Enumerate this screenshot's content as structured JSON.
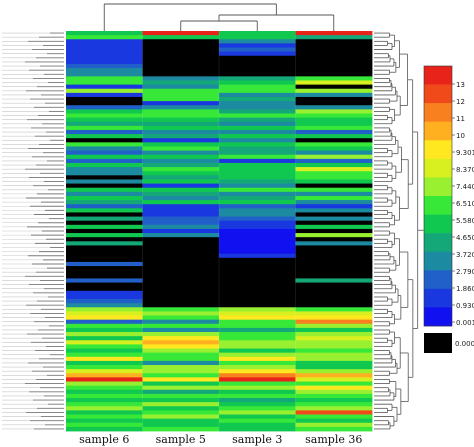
{
  "chart_data": {
    "type": "heatmap",
    "columns": [
      "sample 6",
      "sample 5",
      "sample 3",
      "sample 36"
    ],
    "n_rows": 97,
    "row_labels_legible": false,
    "color_scale": {
      "ticks": [
        "13",
        "12",
        "11",
        "10",
        "9.301",
        "8.370",
        "7.440",
        "6.510",
        "5.580",
        "4.650",
        "3.720",
        "2.790",
        "1.860",
        "0.9301",
        "0.001",
        "0.000"
      ],
      "colors": [
        "#e8231a",
        "#f04a1a",
        "#f8801e",
        "#ffb020",
        "#ffe820",
        "#d8f020",
        "#98f030",
        "#38e838",
        "#10c850",
        "#14a878",
        "#1c8aa0",
        "#2060c8",
        "#1a38e0",
        "#1010f0",
        "#000000"
      ],
      "no_data_color": "#000000",
      "zero_label": "0.000"
    },
    "row_colors": [
      [
        "#10c850",
        "#e8231a",
        "#10c850",
        "#e8231a"
      ],
      [
        "#38e838",
        "#10c850",
        "#10c850",
        "#14a878"
      ],
      [
        "#1a38e0",
        "#000000",
        "#1c8aa0",
        "#000000"
      ],
      [
        "#1a38e0",
        "#000000",
        "#1a38e0",
        "#000000"
      ],
      [
        "#1a38e0",
        "#000000",
        "#2060c8",
        "#000000"
      ],
      [
        "#1a38e0",
        "#000000",
        "#1a38e0",
        "#000000"
      ],
      [
        "#1a38e0",
        "#000000",
        "#000000",
        "#000000"
      ],
      [
        "#1a38e0",
        "#000000",
        "#000000",
        "#000000"
      ],
      [
        "#2060c8",
        "#000000",
        "#000000",
        "#000000"
      ],
      [
        "#1c8aa0",
        "#000000",
        "#000000",
        "#000000"
      ],
      [
        "#1c8aa0",
        "#000000",
        "#000000",
        "#000000"
      ],
      [
        "#38e838",
        "#1c8aa0",
        "#14a878",
        "#38e838"
      ],
      [
        "#38e838",
        "#14a878",
        "#10c850",
        "#d8f020"
      ],
      [
        "#1a38e0",
        "#1c8aa0",
        "#38e838",
        "#000000"
      ],
      [
        "#98f030",
        "#38e838",
        "#38e838",
        "#98f030"
      ],
      [
        "#1a38e0",
        "#38e838",
        "#1c8aa0",
        "#1c8aa0"
      ],
      [
        "#000000",
        "#38e838",
        "#14a878",
        "#000000"
      ],
      [
        "#000000",
        "#1a38e0",
        "#1c8aa0",
        "#000000"
      ],
      [
        "#2060c8",
        "#1c8aa0",
        "#1c8aa0",
        "#1c8aa0"
      ],
      [
        "#10c850",
        "#38e838",
        "#14a878",
        "#98f030"
      ],
      [
        "#38e838",
        "#38e838",
        "#38e838",
        "#38e838"
      ],
      [
        "#10c850",
        "#10c850",
        "#14a878",
        "#10c850"
      ],
      [
        "#14a878",
        "#14a878",
        "#1c8aa0",
        "#10c850"
      ],
      [
        "#38e838",
        "#10c850",
        "#10c850",
        "#38e838"
      ],
      [
        "#2060c8",
        "#1c8aa0",
        "#1c8aa0",
        "#2060c8"
      ],
      [
        "#10c850",
        "#14a878",
        "#10c850",
        "#10c850"
      ],
      [
        "#000000",
        "#1a38e0",
        "#1c8aa0",
        "#000000"
      ],
      [
        "#38e838",
        "#10c850",
        "#10c850",
        "#38e838"
      ],
      [
        "#1c8aa0",
        "#38e838",
        "#14a878",
        "#10c850"
      ],
      [
        "#2060c8",
        "#1c8aa0",
        "#14a878",
        "#1c8aa0"
      ],
      [
        "#10c850",
        "#10c850",
        "#38e838",
        "#98f030"
      ],
      [
        "#2060c8",
        "#1c8aa0",
        "#1a38e0",
        "#2060c8"
      ],
      [
        "#10c850",
        "#14a878",
        "#10c850",
        "#10c850"
      ],
      [
        "#1c8aa0",
        "#38e838",
        "#10c850",
        "#d8f020"
      ],
      [
        "#1c8aa0",
        "#10c850",
        "#10c850",
        "#38e838"
      ],
      [
        "#000000",
        "#14a878",
        "#10c850",
        "#38e838"
      ],
      [
        "#1c8aa0",
        "#10c850",
        "#14a878",
        "#10c850"
      ],
      [
        "#000000",
        "#1a38e0",
        "#1c8aa0",
        "#000000"
      ],
      [
        "#10c850",
        "#10c850",
        "#38e838",
        "#38e838"
      ],
      [
        "#1c8aa0",
        "#14a878",
        "#1c8aa0",
        "#1c8aa0"
      ],
      [
        "#10c850",
        "#1c8aa0",
        "#14a878",
        "#38e838"
      ],
      [
        "#14a878",
        "#10c850",
        "#10c850",
        "#1c8aa0"
      ],
      [
        "#2060c8",
        "#1a38e0",
        "#2060c8",
        "#1a38e0"
      ],
      [
        "#10c850",
        "#1a38e0",
        "#1c8aa0",
        "#1c8aa0"
      ],
      [
        "#000000",
        "#1a38e0",
        "#1c8aa0",
        "#000000"
      ],
      [
        "#14a878",
        "#2060c8",
        "#2060c8",
        "#1c8aa0"
      ],
      [
        "#000000",
        "#2060c8",
        "#1a38e0",
        "#000000"
      ],
      [
        "#10c850",
        "#1c8aa0",
        "#1a38e0",
        "#10c850"
      ],
      [
        "#000000",
        "#1a38e0",
        "#1010f0",
        "#000000"
      ],
      [
        "#10c850",
        "#1c8aa0",
        "#1010f0",
        "#98f030"
      ],
      [
        "#000000",
        "#000000",
        "#1010f0",
        "#000000"
      ],
      [
        "#14a878",
        "#000000",
        "#1010f0",
        "#1c8aa0"
      ],
      [
        "#000000",
        "#000000",
        "#1010f0",
        "#000000"
      ],
      [
        "#000000",
        "#000000",
        "#1010f0",
        "#000000"
      ],
      [
        "#000000",
        "#000000",
        "#1a38e0",
        "#000000"
      ],
      [
        "#000000",
        "#000000",
        "#000000",
        "#000000"
      ],
      [
        "#2060c8",
        "#000000",
        "#000000",
        "#000000"
      ],
      [
        "#000000",
        "#000000",
        "#000000",
        "#000000"
      ],
      [
        "#000000",
        "#000000",
        "#000000",
        "#000000"
      ],
      [
        "#000000",
        "#000000",
        "#000000",
        "#000000"
      ],
      [
        "#2060c8",
        "#000000",
        "#000000",
        "#14a878"
      ],
      [
        "#000000",
        "#000000",
        "#000000",
        "#000000"
      ],
      [
        "#000000",
        "#000000",
        "#000000",
        "#000000"
      ],
      [
        "#1a38e0",
        "#000000",
        "#000000",
        "#000000"
      ],
      [
        "#1a38e0",
        "#000000",
        "#000000",
        "#000000"
      ],
      [
        "#2060c8",
        "#000000",
        "#000000",
        "#000000"
      ],
      [
        "#1c8aa0",
        "#000000",
        "#000000",
        "#000000"
      ],
      [
        "#98f030",
        "#38e838",
        "#98f030",
        "#38e838"
      ],
      [
        "#d8f020",
        "#98f030",
        "#d8f020",
        "#d8f020"
      ],
      [
        "#ffe820",
        "#38e838",
        "#ffe820",
        "#ffe820"
      ],
      [
        "#2060c8",
        "#1c8aa0",
        "#38e838",
        "#f8801e"
      ],
      [
        "#38e838",
        "#38e838",
        "#38e838",
        "#98f030"
      ],
      [
        "#10c850",
        "#1c8aa0",
        "#14a878",
        "#10c850"
      ],
      [
        "#98f030",
        "#98f030",
        "#38e838",
        "#98f030"
      ],
      [
        "#10c850",
        "#ffe820",
        "#38e838",
        "#d8f020"
      ],
      [
        "#d8f020",
        "#ffb020",
        "#98f030",
        "#98f030"
      ],
      [
        "#38e838",
        "#ffe820",
        "#98f030",
        "#98f030"
      ],
      [
        "#10c850",
        "#98f030",
        "#10c850",
        "#38e838"
      ],
      [
        "#38e838",
        "#38e838",
        "#98f030",
        "#98f030"
      ],
      [
        "#ffe820",
        "#38e838",
        "#ffe820",
        "#98f030"
      ],
      [
        "#10c850",
        "#1c8aa0",
        "#38e838",
        "#10c850"
      ],
      [
        "#38e838",
        "#98f030",
        "#98f030",
        "#10c850"
      ],
      [
        "#d8f020",
        "#98f030",
        "#ffe820",
        "#98f030"
      ],
      [
        "#ffb020",
        "#38e838",
        "#f8801e",
        "#ffb020"
      ],
      [
        "#e8231a",
        "#ffe820",
        "#e8231a",
        "#d8f020"
      ],
      [
        "#98f030",
        "#10c850",
        "#38e838",
        "#38e838"
      ],
      [
        "#38e838",
        "#98f030",
        "#98f030",
        "#ffe820"
      ],
      [
        "#10c850",
        "#14a878",
        "#10c850",
        "#98f030"
      ],
      [
        "#38e838",
        "#38e838",
        "#38e838",
        "#38e838"
      ],
      [
        "#10c850",
        "#10c850",
        "#14a878",
        "#10c850"
      ],
      [
        "#38e838",
        "#98f030",
        "#10c850",
        "#38e838"
      ],
      [
        "#98f030",
        "#10c850",
        "#38e838",
        "#98f030"
      ],
      [
        "#10c850",
        "#38e838",
        "#98f030",
        "#f04a1a"
      ],
      [
        "#38e838",
        "#98f030",
        "#10c850",
        "#38e838"
      ],
      [
        "#10c850",
        "#10c850",
        "#38e838",
        "#10c850"
      ],
      [
        "#38e838",
        "#10c850",
        "#10c850",
        "#98f030"
      ],
      [
        "#10c850",
        "#38e838",
        "#10c850",
        "#38e838"
      ]
    ]
  }
}
